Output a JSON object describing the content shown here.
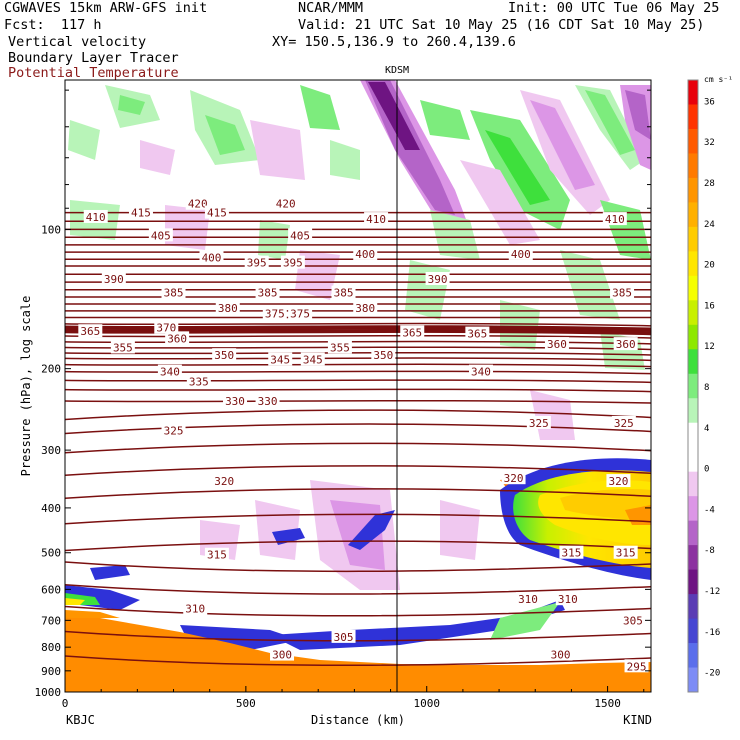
{
  "header": {
    "model": "CGWAVES 15km ARW-GFS init",
    "fcst": "Fcst:  117 h",
    "org": "NCAR/MMM",
    "init": "Init: 00 UTC Tue 06 May 25",
    "valid": "Valid: 21 UTC Sat 10 May 25 (16 CDT Sat 10 May 25)",
    "xy": "XY= 150.5,136.9 to 260.4,139.6",
    "field1": "Vertical velocity",
    "field2": "Boundary Layer Tracer",
    "field3": "Potential Temperature",
    "field3_color": "#8b1a1a"
  },
  "chart_data": {
    "type": "heatmap",
    "station_marker": {
      "label": "KDSM",
      "x_km": 935
    },
    "xlabel": "Distance (km)",
    "ylabel": "Pressure (hPa), log scale",
    "x_ticks": [
      "0",
      "500",
      "1000",
      "1500"
    ],
    "x_tick_values": [
      0,
      500,
      1000,
      1500
    ],
    "xlim": [
      0,
      1620
    ],
    "y_ticks": [
      "100",
      "200",
      "300",
      "400",
      "500",
      "600",
      "700",
      "800",
      "900",
      "1000"
    ],
    "y_tick_values": [
      100,
      200,
      300,
      400,
      500,
      600,
      700,
      800,
      900,
      1000
    ],
    "y_scale": "log",
    "left_endpoint": "KBJC",
    "right_endpoint": "KIND",
    "colorbar": {
      "units": "cm s⁻¹",
      "tick_labels": [
        "36",
        "32",
        "28",
        "24",
        "20",
        "16",
        "12",
        "8",
        "4",
        "0",
        "-4",
        "-8",
        "-12",
        "-16",
        "-20"
      ],
      "tick_values": [
        36,
        32,
        28,
        24,
        20,
        16,
        12,
        8,
        4,
        0,
        -4,
        -8,
        -12,
        -16,
        -20
      ],
      "colors": [
        "#e8000b",
        "#ff3300",
        "#ff5a00",
        "#ff7a00",
        "#ff9500",
        "#ffb000",
        "#ffcc00",
        "#ffe600",
        "#f5ff00",
        "#c8f000",
        "#8ee800",
        "#3ee03c",
        "#7dec7d",
        "#b8f4b8",
        "#ffffff",
        "#ffffff",
        "#f0c8f0",
        "#dc96e6",
        "#b464c8",
        "#8c32a0",
        "#6e1482",
        "#5a3cb4",
        "#4646d2",
        "#5a6eeb",
        "#7d8cf5"
      ]
    },
    "theta_labels": [
      {
        "v": "410",
        "x": 85,
        "p": 94
      },
      {
        "v": "415",
        "x": 210,
        "p": 92
      },
      {
        "v": "420",
        "x": 367,
        "p": 88
      },
      {
        "v": "415",
        "x": 420,
        "p": 92
      },
      {
        "v": "420",
        "x": 610,
        "p": 88
      },
      {
        "v": "405",
        "x": 265,
        "p": 103
      },
      {
        "v": "405",
        "x": 650,
        "p": 103
      },
      {
        "v": "410",
        "x": 860,
        "p": 95
      },
      {
        "v": "410",
        "x": 1520,
        "p": 95
      },
      {
        "v": "400",
        "x": 405,
        "p": 115
      },
      {
        "v": "395",
        "x": 530,
        "p": 118
      },
      {
        "v": "395",
        "x": 630,
        "p": 118
      },
      {
        "v": "400",
        "x": 830,
        "p": 113
      },
      {
        "v": "400",
        "x": 1260,
        "p": 113
      },
      {
        "v": "390",
        "x": 135,
        "p": 128
      },
      {
        "v": "390",
        "x": 1030,
        "p": 128
      },
      {
        "v": "385",
        "x": 300,
        "p": 137
      },
      {
        "v": "385",
        "x": 560,
        "p": 137
      },
      {
        "v": "385",
        "x": 770,
        "p": 137
      },
      {
        "v": "385",
        "x": 1540,
        "p": 137
      },
      {
        "v": "380",
        "x": 450,
        "p": 148
      },
      {
        "v": "375",
        "x": 580,
        "p": 152
      },
      {
        "v": "375",
        "x": 650,
        "p": 152
      },
      {
        "v": "380",
        "x": 830,
        "p": 148
      },
      {
        "v": "365",
        "x": 70,
        "p": 166
      },
      {
        "v": "370",
        "x": 280,
        "p": 163
      },
      {
        "v": "365",
        "x": 960,
        "p": 167
      },
      {
        "v": "365",
        "x": 1140,
        "p": 168
      },
      {
        "v": "360",
        "x": 310,
        "p": 172
      },
      {
        "v": "360",
        "x": 1360,
        "p": 177
      },
      {
        "v": "360",
        "x": 1550,
        "p": 177
      },
      {
        "v": "355",
        "x": 160,
        "p": 180
      },
      {
        "v": "355",
        "x": 760,
        "p": 180
      },
      {
        "v": "350",
        "x": 440,
        "p": 187
      },
      {
        "v": "350",
        "x": 880,
        "p": 187
      },
      {
        "v": "345",
        "x": 595,
        "p": 191
      },
      {
        "v": "345",
        "x": 685,
        "p": 191
      },
      {
        "v": "340",
        "x": 290,
        "p": 203
      },
      {
        "v": "340",
        "x": 1150,
        "p": 203
      },
      {
        "v": "335",
        "x": 370,
        "p": 213
      },
      {
        "v": "330",
        "x": 470,
        "p": 235
      },
      {
        "v": "330",
        "x": 560,
        "p": 235
      },
      {
        "v": "325",
        "x": 300,
        "p": 272
      },
      {
        "v": "325",
        "x": 1310,
        "p": 262
      },
      {
        "v": "325",
        "x": 1545,
        "p": 262
      },
      {
        "v": "320",
        "x": 440,
        "p": 350
      },
      {
        "v": "320",
        "x": 1240,
        "p": 345
      },
      {
        "v": "320",
        "x": 1530,
        "p": 350
      },
      {
        "v": "315",
        "x": 420,
        "p": 505
      },
      {
        "v": "315",
        "x": 1400,
        "p": 500
      },
      {
        "v": "315",
        "x": 1550,
        "p": 500
      },
      {
        "v": "310",
        "x": 360,
        "p": 660
      },
      {
        "v": "310",
        "x": 1280,
        "p": 630
      },
      {
        "v": "310",
        "x": 1390,
        "p": 630
      },
      {
        "v": "305",
        "x": 770,
        "p": 760
      },
      {
        "v": "305",
        "x": 1570,
        "p": 700
      },
      {
        "v": "300",
        "x": 600,
        "p": 830
      },
      {
        "v": "300",
        "x": 1370,
        "p": 830
      },
      {
        "v": "295",
        "x": 1580,
        "p": 880
      }
    ]
  }
}
